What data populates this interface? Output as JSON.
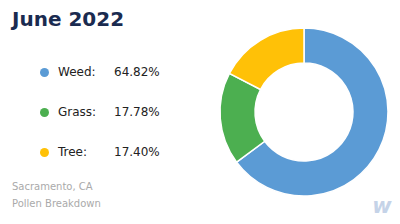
{
  "chart_data": {
    "type": "pie",
    "title": "June 2022",
    "subtitle": "Sacramento, CA\nPollen Breakdown",
    "categories": [
      "Weed:",
      "Grass:",
      "Tree:"
    ],
    "values": [
      64.82,
      17.78,
      17.4
    ],
    "value_labels": [
      "64.82%",
      "17.78%",
      "17.40%"
    ],
    "colors": [
      "#5B9BD5",
      "#4CAF50",
      "#FFC107"
    ],
    "legend": "left",
    "annotations": [
      "w"
    ]
  }
}
